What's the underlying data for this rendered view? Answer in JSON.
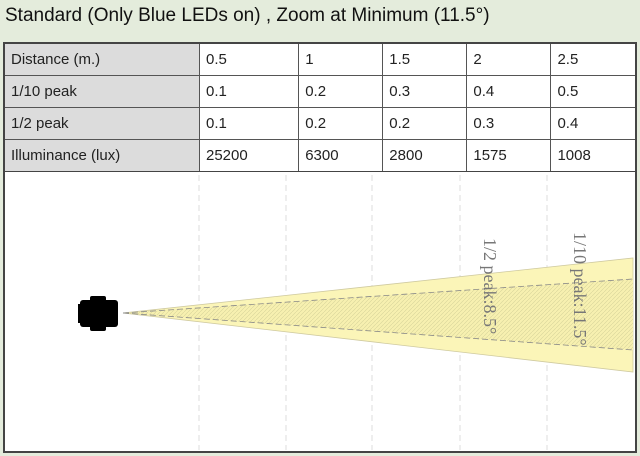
{
  "title": "Standard  (Only Blue LEDs on) , Zoom at Minimum (11.5°)",
  "table": {
    "rows": [
      {
        "label": "Distance (m.)",
        "values": [
          "0.5",
          "1",
          "1.5",
          "2",
          "2.5"
        ]
      },
      {
        "label": "1/10 peak",
        "values": [
          "0.1",
          "0.2",
          "0.3",
          "0.4",
          "0.5"
        ]
      },
      {
        "label": "1/2 peak",
        "values": [
          "0.1",
          "0.2",
          "0.2",
          "0.3",
          "0.4"
        ]
      },
      {
        "label": "Illuminance (lux)",
        "values": [
          "25200",
          "6300",
          "2800",
          "1575",
          "1008"
        ]
      }
    ]
  },
  "diagram": {
    "half_peak_label": "1/2 peak:8.5°",
    "tenth_peak_label": "1/10 peak:11.5°",
    "beam_color": "#fbf5b8",
    "icon": "camera-icon"
  }
}
